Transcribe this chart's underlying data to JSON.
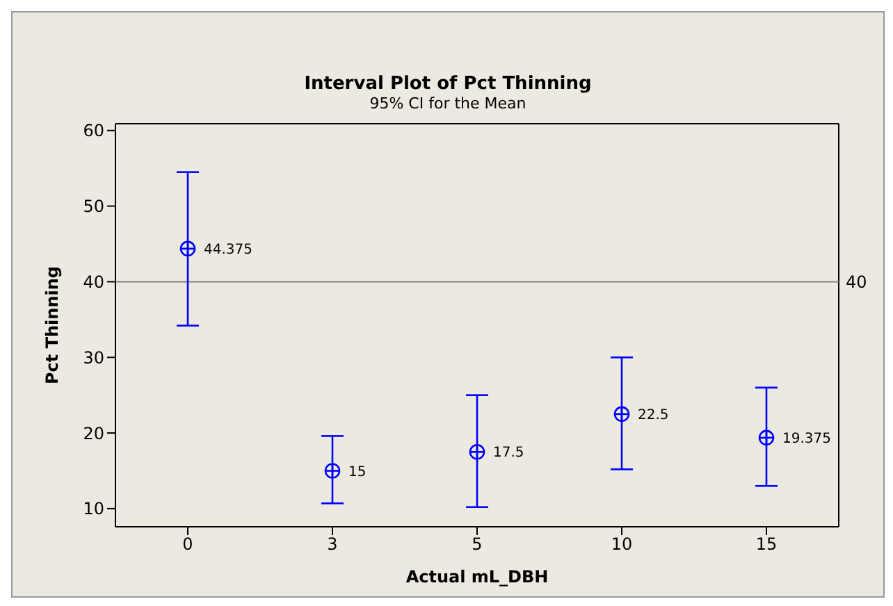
{
  "chart_data": {
    "type": "scatter",
    "title": "Interval Plot of Pct Thinning",
    "subtitle": "95% CI for the Mean",
    "xlabel": "Actual mL_DBH",
    "ylabel": "Pct Thinning",
    "categories": [
      "0",
      "3",
      "5",
      "10",
      "15"
    ],
    "series": [
      {
        "color": "#0000ff",
        "values": [
          44.375,
          15,
          17.5,
          22.5,
          19.375
        ],
        "errors": [
          [
            34.2,
            54.5
          ],
          [
            10.7,
            19.6
          ],
          [
            10.2,
            25.0
          ],
          [
            15.2,
            30.0
          ],
          [
            13.0,
            26.0
          ]
        ]
      }
    ],
    "ylim": [
      7.6,
      60.9
    ],
    "yticks": [
      10,
      20,
      30,
      40,
      50,
      60
    ],
    "ref_lines": [
      {
        "axis": "y",
        "value": 40,
        "label": "40",
        "color": "#808080"
      }
    ],
    "data_labels": true,
    "marker": "circle",
    "grid": false,
    "legend": false
  }
}
